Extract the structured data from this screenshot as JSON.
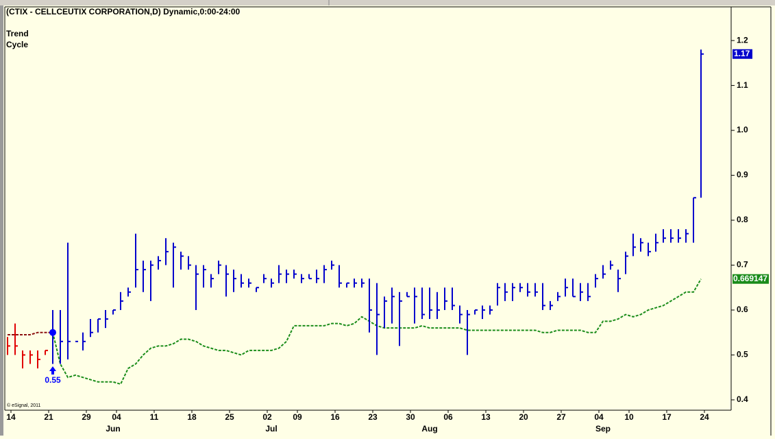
{
  "chart_data": {
    "type": "ohlc",
    "title": "(CTIX - CELLCEUTIX CORPORATION,D) Dynamic,0:00-24:00",
    "study_labels": [
      "Trend",
      "Cycle"
    ],
    "copyright": "© eSignal, 2011",
    "categories": [
      "14",
      null,
      null,
      null,
      null,
      "21",
      null,
      null,
      null,
      null,
      "29",
      null,
      null,
      null,
      "04",
      null,
      null,
      null,
      null,
      "11",
      null,
      null,
      null,
      null,
      "18",
      null,
      null,
      null,
      null,
      "25",
      null,
      null,
      null,
      null,
      "02",
      null,
      null,
      null,
      "09",
      null,
      null,
      null,
      null,
      "16",
      null,
      null,
      null,
      null,
      "23",
      null,
      null,
      null,
      null,
      "30",
      null,
      null,
      null,
      null,
      "06",
      null,
      null,
      null,
      null,
      "13",
      null,
      null,
      null,
      null,
      "20",
      null,
      null,
      null,
      null,
      "27",
      null,
      null,
      null,
      null,
      "04",
      null,
      null,
      null,
      "10",
      null,
      null,
      null,
      null,
      "17",
      null,
      null,
      null,
      null,
      "24"
    ],
    "months": [
      null,
      null,
      null,
      null,
      null,
      null,
      null,
      null,
      null,
      null,
      null,
      null,
      null,
      "Jun",
      null,
      null,
      null,
      null,
      null,
      null,
      null,
      null,
      null,
      null,
      null,
      null,
      null,
      null,
      null,
      null,
      null,
      null,
      null,
      null,
      "Jul",
      null,
      null,
      null,
      null,
      null,
      null,
      null,
      null,
      null,
      null,
      null,
      null,
      null,
      null,
      null,
      null,
      null,
      null,
      null,
      null,
      "Aug",
      null,
      null,
      null,
      null,
      null,
      null,
      null,
      null,
      null,
      null,
      null,
      null,
      null,
      null,
      null,
      null,
      null,
      null,
      null,
      null,
      null,
      null,
      "Sep",
      null,
      null,
      null,
      null,
      null,
      null,
      null,
      null,
      null,
      null,
      null,
      null,
      null,
      null
    ],
    "series": [
      {
        "color": "#e00000",
        "high": [
          0.54,
          0.57,
          0.51,
          0.51,
          0.51,
          0.51
        ],
        "low": [
          0.5,
          0.5,
          0.47,
          0.48,
          0.47,
          0.5
        ],
        "close": [
          0.52,
          0.52,
          0.5,
          0.5,
          0.49,
          0.51
        ]
      },
      {
        "color": "#0000cc",
        "high": [
          0.6,
          0.6,
          0.75,
          0.53,
          0.55,
          0.58,
          0.58,
          0.6,
          0.6,
          0.64,
          0.65,
          0.77,
          0.71,
          0.71,
          0.72,
          0.76,
          0.75,
          0.73,
          0.72,
          0.7,
          0.7,
          0.68,
          0.71,
          0.7,
          0.69,
          0.68,
          0.67,
          0.65,
          0.68,
          0.67,
          0.7,
          0.69,
          0.69,
          0.68,
          0.68,
          0.69,
          0.7,
          0.71,
          0.7,
          0.66,
          0.67,
          0.67,
          0.67,
          0.66,
          0.63,
          0.65,
          0.64,
          0.64,
          0.65,
          0.65,
          0.65,
          0.64,
          0.65,
          0.65,
          0.61,
          0.6,
          0.6,
          0.61,
          0.61,
          0.66,
          0.66,
          0.66,
          0.66,
          0.66,
          0.66,
          0.66,
          0.62,
          0.64,
          0.67,
          0.67,
          0.66,
          0.66,
          0.68,
          0.7,
          0.71,
          0.69,
          0.73,
          0.77,
          0.76,
          0.75,
          0.77,
          0.78,
          0.78,
          0.78,
          0.78,
          0.85,
          1.18
        ],
        "low": [
          0.48,
          0.48,
          0.49,
          0.53,
          0.51,
          0.54,
          0.55,
          0.56,
          0.59,
          0.6,
          0.63,
          0.65,
          0.64,
          0.62,
          0.69,
          0.7,
          0.65,
          0.69,
          0.69,
          0.6,
          0.65,
          0.65,
          0.68,
          0.63,
          0.64,
          0.65,
          0.65,
          0.64,
          0.66,
          0.65,
          0.66,
          0.66,
          0.67,
          0.66,
          0.67,
          0.66,
          0.66,
          0.69,
          0.65,
          0.65,
          0.65,
          0.65,
          0.55,
          0.5,
          0.56,
          0.57,
          0.52,
          0.63,
          0.57,
          0.58,
          0.58,
          0.58,
          0.6,
          0.6,
          0.57,
          0.5,
          0.59,
          0.58,
          0.59,
          0.61,
          0.62,
          0.62,
          0.64,
          0.63,
          0.63,
          0.6,
          0.6,
          0.62,
          0.63,
          0.63,
          0.62,
          0.62,
          0.65,
          0.67,
          0.69,
          0.64,
          0.68,
          0.72,
          0.73,
          0.72,
          0.73,
          0.75,
          0.75,
          0.75,
          0.75,
          0.75,
          0.85
        ],
        "close": [
          0.55,
          0.53,
          0.53,
          0.53,
          0.53,
          0.55,
          0.58,
          0.58,
          0.6,
          0.62,
          0.64,
          0.69,
          0.69,
          0.7,
          0.71,
          0.73,
          0.74,
          0.72,
          0.7,
          0.68,
          0.69,
          0.67,
          0.7,
          0.68,
          0.67,
          0.66,
          0.66,
          0.65,
          0.67,
          0.66,
          0.68,
          0.68,
          0.68,
          0.67,
          0.67,
          0.67,
          0.69,
          0.7,
          0.66,
          0.66,
          0.66,
          0.66,
          0.6,
          0.59,
          0.62,
          0.63,
          0.62,
          0.63,
          0.63,
          0.59,
          0.6,
          0.6,
          0.62,
          0.61,
          0.59,
          0.59,
          0.6,
          0.6,
          0.6,
          0.65,
          0.64,
          0.65,
          0.65,
          0.64,
          0.64,
          0.61,
          0.61,
          0.63,
          0.65,
          0.63,
          0.64,
          0.63,
          0.67,
          0.68,
          0.7,
          0.67,
          0.72,
          0.74,
          0.75,
          0.73,
          0.75,
          0.76,
          0.76,
          0.76,
          0.77,
          0.85,
          1.17
        ]
      }
    ],
    "trend": {
      "color": "#1a8c1a",
      "pre_signal_color": "#8b1010",
      "values": [
        0.545,
        0.545,
        0.545,
        0.545,
        0.55,
        0.55,
        0.55,
        0.48,
        0.45,
        0.455,
        0.45,
        0.445,
        0.44,
        0.44,
        0.44,
        0.435,
        0.47,
        0.48,
        0.5,
        0.515,
        0.52,
        0.52,
        0.525,
        0.535,
        0.535,
        0.53,
        0.52,
        0.515,
        0.51,
        0.51,
        0.505,
        0.5,
        0.51,
        0.51,
        0.51,
        0.51,
        0.515,
        0.53,
        0.565,
        0.565,
        0.565,
        0.565,
        0.565,
        0.57,
        0.57,
        0.565,
        0.57,
        0.585,
        0.575,
        0.565,
        0.56,
        0.56,
        0.56,
        0.56,
        0.56,
        0.565,
        0.56,
        0.56,
        0.56,
        0.56,
        0.56,
        0.555,
        0.555,
        0.555,
        0.555,
        0.555,
        0.555,
        0.555,
        0.555,
        0.555,
        0.555,
        0.55,
        0.55,
        0.555,
        0.555,
        0.555,
        0.555,
        0.55,
        0.55,
        0.575,
        0.575,
        0.58,
        0.59,
        0.585,
        0.59,
        0.6,
        0.605,
        0.61,
        0.62,
        0.63,
        0.64,
        0.64,
        0.669147
      ]
    },
    "signal": {
      "value": 0.55,
      "color": "#0000ff"
    },
    "ylim": [
      0.377,
      1.275
    ],
    "yticks": [
      0.4,
      0.5,
      0.6,
      0.7,
      0.8,
      0.9,
      {
        "value": 1,
        "label": "1.0"
      },
      1.1,
      1.2
    ]
  }
}
